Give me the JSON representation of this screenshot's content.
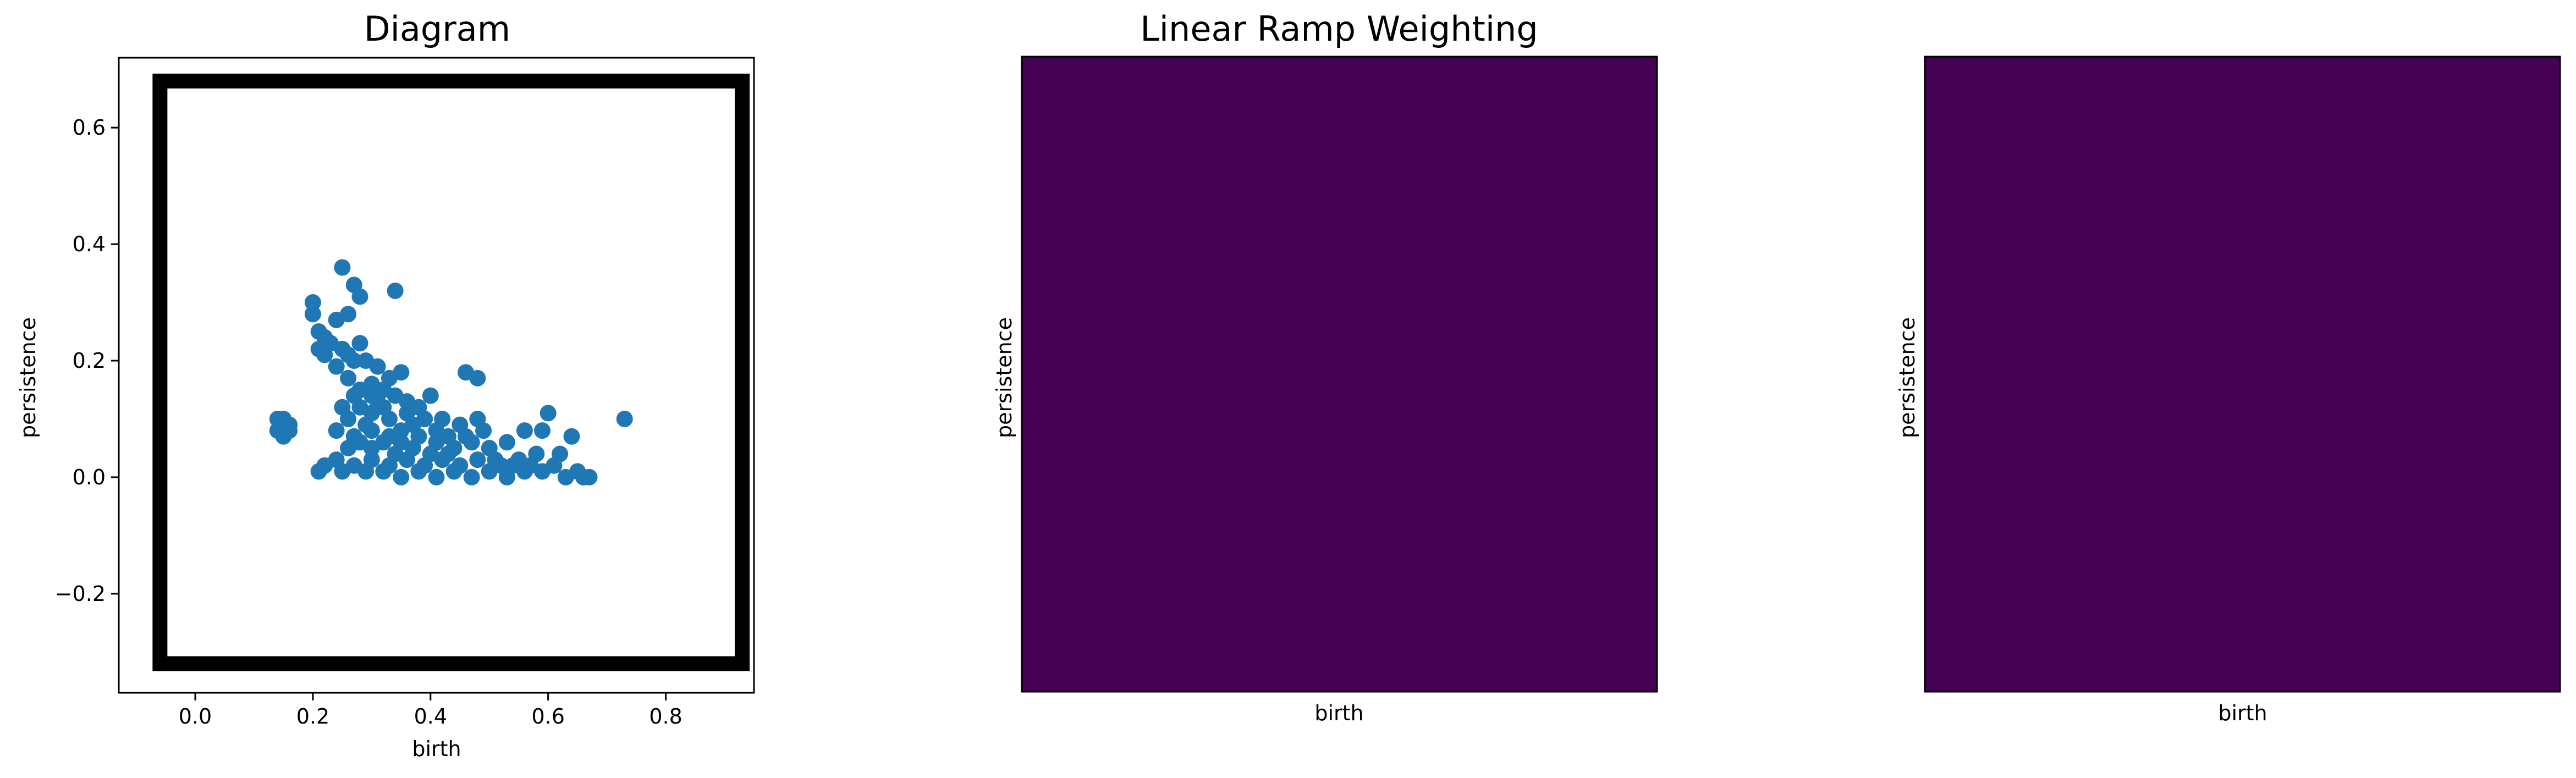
{
  "colors": {
    "points": "#1f77b4",
    "frame": "#000000",
    "heatmap": "#440154"
  },
  "chart_data": [
    {
      "type": "scatter",
      "title": "Diagram",
      "xlabel": "birth",
      "ylabel": "persistence",
      "xlim": [
        -0.13,
        0.95
      ],
      "ylim": [
        -0.37,
        0.72
      ],
      "xticks": [
        0.0,
        0.2,
        0.4,
        0.6,
        0.8
      ],
      "xtick_labels": [
        "0.0",
        "0.2",
        "0.4",
        "0.6",
        "0.8"
      ],
      "yticks": [
        -0.2,
        0.0,
        0.2,
        0.4,
        0.6
      ],
      "ytick_labels": [
        "−0.2",
        "0.0",
        "0.2",
        "0.4",
        "0.6"
      ],
      "grid": false,
      "pixel_box": {
        "birth": [
          -0.06,
          0.93
        ],
        "persistence": [
          -0.32,
          0.68
        ]
      },
      "points": [
        [
          0.25,
          0.36
        ],
        [
          0.34,
          0.32
        ],
        [
          0.27,
          0.33
        ],
        [
          0.28,
          0.31
        ],
        [
          0.2,
          0.3
        ],
        [
          0.2,
          0.28
        ],
        [
          0.26,
          0.28
        ],
        [
          0.24,
          0.27
        ],
        [
          0.21,
          0.25
        ],
        [
          0.22,
          0.24
        ],
        [
          0.23,
          0.23
        ],
        [
          0.21,
          0.22
        ],
        [
          0.25,
          0.22
        ],
        [
          0.26,
          0.21
        ],
        [
          0.28,
          0.23
        ],
        [
          0.22,
          0.21
        ],
        [
          0.27,
          0.2
        ],
        [
          0.29,
          0.2
        ],
        [
          0.24,
          0.19
        ],
        [
          0.31,
          0.19
        ],
        [
          0.33,
          0.17
        ],
        [
          0.35,
          0.18
        ],
        [
          0.26,
          0.17
        ],
        [
          0.28,
          0.15
        ],
        [
          0.3,
          0.16
        ],
        [
          0.32,
          0.15
        ],
        [
          0.34,
          0.14
        ],
        [
          0.4,
          0.14
        ],
        [
          0.38,
          0.12
        ],
        [
          0.46,
          0.18
        ],
        [
          0.48,
          0.17
        ],
        [
          0.28,
          0.12
        ],
        [
          0.3,
          0.11
        ],
        [
          0.33,
          0.1
        ],
        [
          0.36,
          0.11
        ],
        [
          0.39,
          0.1
        ],
        [
          0.42,
          0.1
        ],
        [
          0.45,
          0.09
        ],
        [
          0.48,
          0.1
        ],
        [
          0.26,
          0.1
        ],
        [
          0.24,
          0.08
        ],
        [
          0.27,
          0.07
        ],
        [
          0.3,
          0.08
        ],
        [
          0.33,
          0.07
        ],
        [
          0.35,
          0.06
        ],
        [
          0.38,
          0.07
        ],
        [
          0.41,
          0.06
        ],
        [
          0.44,
          0.05
        ],
        [
          0.47,
          0.06
        ],
        [
          0.5,
          0.05
        ],
        [
          0.53,
          0.06
        ],
        [
          0.56,
          0.08
        ],
        [
          0.6,
          0.11
        ],
        [
          0.59,
          0.08
        ],
        [
          0.62,
          0.04
        ],
        [
          0.58,
          0.04
        ],
        [
          0.55,
          0.03
        ],
        [
          0.52,
          0.02
        ],
        [
          0.48,
          0.03
        ],
        [
          0.45,
          0.02
        ],
        [
          0.42,
          0.03
        ],
        [
          0.39,
          0.02
        ],
        [
          0.36,
          0.03
        ],
        [
          0.33,
          0.02
        ],
        [
          0.3,
          0.03
        ],
        [
          0.27,
          0.02
        ],
        [
          0.24,
          0.03
        ],
        [
          0.22,
          0.02
        ],
        [
          0.21,
          0.01
        ],
        [
          0.25,
          0.01
        ],
        [
          0.29,
          0.01
        ],
        [
          0.32,
          0.01
        ],
        [
          0.35,
          0.0
        ],
        [
          0.38,
          0.01
        ],
        [
          0.41,
          0.0
        ],
        [
          0.44,
          0.01
        ],
        [
          0.47,
          0.0
        ],
        [
          0.5,
          0.01
        ],
        [
          0.53,
          0.0
        ],
        [
          0.56,
          0.01
        ],
        [
          0.59,
          0.01
        ],
        [
          0.64,
          0.07
        ],
        [
          0.65,
          0.01
        ],
        [
          0.63,
          0.0
        ],
        [
          0.66,
          0.0
        ],
        [
          0.67,
          0.0
        ],
        [
          0.73,
          0.1
        ],
        [
          0.14,
          0.1
        ],
        [
          0.15,
          0.1
        ],
        [
          0.16,
          0.09
        ],
        [
          0.14,
          0.08
        ],
        [
          0.16,
          0.08
        ],
        [
          0.15,
          0.07
        ],
        [
          0.3,
          0.05
        ],
        [
          0.32,
          0.06
        ],
        [
          0.34,
          0.04
        ],
        [
          0.37,
          0.05
        ],
        [
          0.4,
          0.04
        ],
        [
          0.43,
          0.04
        ],
        [
          0.28,
          0.06
        ],
        [
          0.26,
          0.05
        ],
        [
          0.31,
          0.13
        ],
        [
          0.37,
          0.09
        ],
        [
          0.35,
          0.08
        ],
        [
          0.29,
          0.09
        ],
        [
          0.32,
          0.12
        ],
        [
          0.36,
          0.13
        ],
        [
          0.41,
          0.08
        ],
        [
          0.43,
          0.07
        ],
        [
          0.46,
          0.07
        ],
        [
          0.49,
          0.08
        ],
        [
          0.51,
          0.03
        ],
        [
          0.54,
          0.02
        ],
        [
          0.57,
          0.02
        ],
        [
          0.61,
          0.02
        ],
        [
          0.27,
          0.14
        ],
        [
          0.25,
          0.12
        ],
        [
          0.3,
          0.14
        ]
      ]
    },
    {
      "type": "heatmap",
      "title": "Linear Ramp Weighting",
      "xlabel": "birth",
      "ylabel": "persistence",
      "grid": false
    },
    {
      "type": "heatmap",
      "title": "",
      "xlabel": "birth",
      "ylabel": "persistence",
      "grid": false
    }
  ]
}
